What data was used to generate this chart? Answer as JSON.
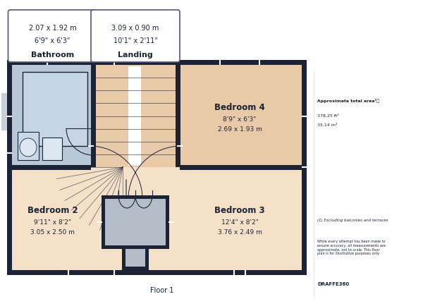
{
  "bg_color": "#ffffff",
  "wall_color": "#1c2336",
  "bathroom_color": "#b8c8d8",
  "landing_color": "#e8c9a8",
  "bedroom_color": "#f5e0c8",
  "gray_shaft": "#b5bec8",
  "floor_label": "Floor 1",
  "approx_title": "Approximate total area¹⧵",
  "approx_ft": "378.25 ft²",
  "approx_m": "35.14 m²",
  "footnote1": "(1) Excluding balconies and terraces",
  "footnote2": "While every attempt has been made to\nensure accuracy, all measurements are\napproximate, not to scale. This floor\nplan is for illustrative purposes only.",
  "brand": "DRAFFE360",
  "bath_label": "Bathroom",
  "bath_dim1": "6'9\" x 6'3\"",
  "bath_dim2": "2.07 x 1.92 m",
  "land_label": "Landing",
  "land_dim1": "10'1\" x 2'11\"",
  "land_dim2": "3.09 x 0.90 m",
  "bed4_label": "Bedroom 4",
  "bed4_dim1": "8'9\" x 6'3\"",
  "bed4_dim2": "2.69 x 1.93 m",
  "bed2_label": "Bedroom 2",
  "bed2_dim1": "9'11\" x 8'2\"",
  "bed2_dim2": "3.05 x 2.50 m",
  "bed3_label": "Bedroom 3",
  "bed3_dim1": "12'4\" x 8'2\"",
  "bed3_dim2": "3.76 x 2.49 m"
}
